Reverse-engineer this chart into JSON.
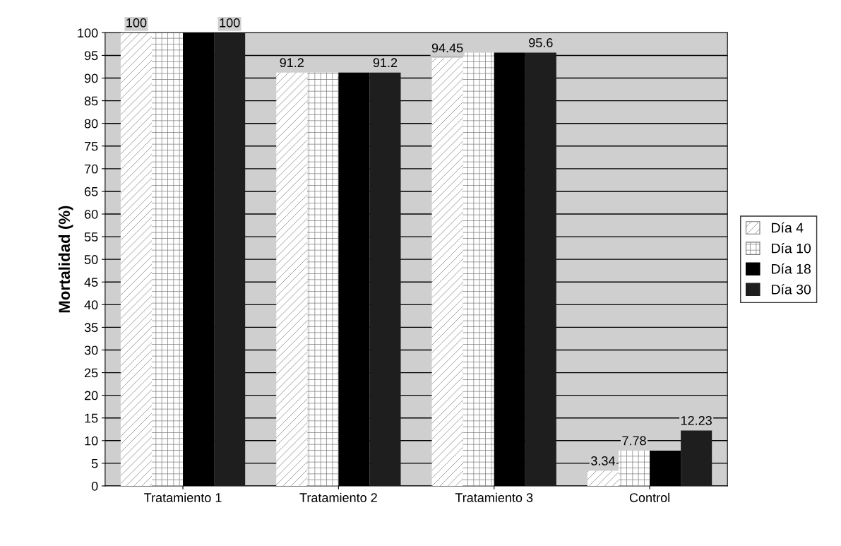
{
  "chart_data": {
    "type": "bar",
    "ylabel": "Mortalidad (%)",
    "categories": [
      "Tratamiento 1",
      "Tratamiento 2",
      "Tratamiento 3",
      "Control"
    ],
    "series": [
      {
        "name": "Día 4",
        "color": "#ffffff",
        "values": [
          100,
          91.2,
          94.45,
          3.34
        ],
        "value_labels": [
          "100",
          "91.2",
          "94.45",
          "3.34"
        ]
      },
      {
        "name": "Día 10",
        "color": "#ffffff",
        "values": [
          100,
          91.2,
          95.6,
          7.78
        ],
        "value_labels": [
          null,
          null,
          null,
          "7.78"
        ]
      },
      {
        "name": "Día 18",
        "color": "#000000",
        "values": [
          100,
          91.2,
          95.6,
          7.78
        ],
        "value_labels": [
          null,
          null,
          null,
          null
        ]
      },
      {
        "name": "Día 30",
        "color": "#1e1e1e",
        "values": [
          100,
          91.2,
          95.6,
          12.23
        ],
        "value_labels": [
          "100",
          "91.2",
          "95.6",
          "12.23"
        ]
      }
    ],
    "ylim": [
      0,
      100
    ],
    "yticks": [
      0,
      5,
      10,
      15,
      20,
      25,
      30,
      35,
      40,
      45,
      50,
      55,
      60,
      65,
      70,
      75,
      80,
      85,
      90,
      95,
      100
    ],
    "grid": "y",
    "legend": "right"
  }
}
